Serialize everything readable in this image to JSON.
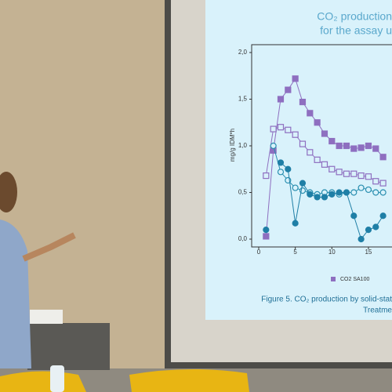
{
  "slide": {
    "title": "CO₂ production",
    "subtitle": "for the assay u",
    "chart": {
      "type": "line",
      "y_label": "mg/g IDM*h",
      "xlim": [
        0,
        19
      ],
      "ylim": [
        0,
        2
      ],
      "xticks": [
        0,
        5,
        10,
        15
      ],
      "yticks": [
        {
          "value": 0,
          "label": "0,0"
        },
        {
          "value": 0.5,
          "label": "0,5"
        },
        {
          "value": 1,
          "label": "1,0"
        },
        {
          "value": 1.5,
          "label": "1,5"
        },
        {
          "value": 2,
          "label": "2,0"
        }
      ],
      "x": [
        1,
        2,
        3,
        4,
        5,
        6,
        7,
        8,
        9,
        10,
        11,
        12,
        13,
        14,
        15,
        16,
        17
      ],
      "series": [
        {
          "name": "CO2 SA100",
          "color": "#8e6fc0",
          "marker": "square-filled",
          "values": [
            0.03,
            0.95,
            1.5,
            1.6,
            1.72,
            1.47,
            1.35,
            1.25,
            1.13,
            1.05,
            1.0,
            1.0,
            0.97,
            0.98,
            1.0,
            0.97,
            0.88
          ]
        },
        {
          "color": "#8e6fc0",
          "marker": "square-open",
          "values": [
            0.68,
            1.18,
            1.2,
            1.17,
            1.12,
            1.02,
            0.93,
            0.85,
            0.8,
            0.75,
            0.72,
            0.7,
            0.7,
            0.68,
            0.67,
            0.62,
            0.6
          ]
        },
        {
          "color": "#2a8fb0",
          "marker": "circle-open",
          "values": [
            null,
            1.0,
            0.72,
            0.63,
            0.55,
            0.52,
            0.5,
            0.48,
            0.5,
            0.5,
            0.48,
            0.5,
            0.5,
            0.55,
            0.53,
            0.5,
            0.5
          ]
        },
        {
          "color": "#1f7fa6",
          "marker": "circle-filled",
          "values": [
            0.1,
            null,
            0.82,
            0.75,
            0.17,
            0.6,
            0.48,
            0.45,
            0.45,
            0.48,
            0.5,
            0.5,
            0.25,
            0.0,
            0.1,
            0.13,
            0.25
          ]
        }
      ]
    },
    "caption": "Figure 5. CO₂ production by solid-stat",
    "caption2": "Treatme"
  }
}
